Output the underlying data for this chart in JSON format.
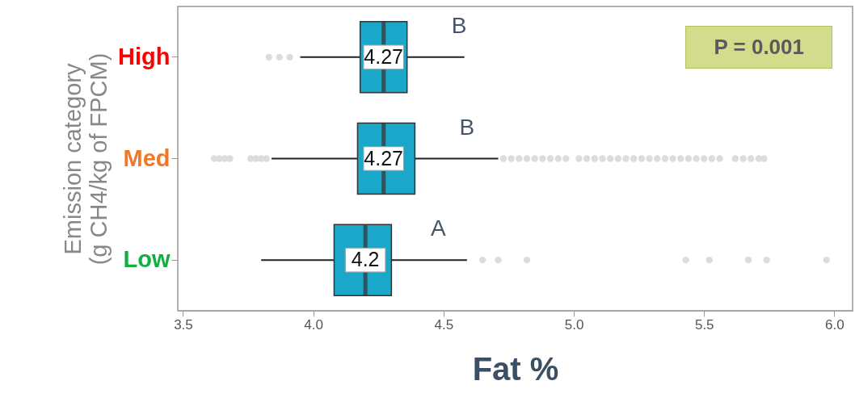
{
  "chart_data": {
    "type": "box",
    "orientation": "horizontal",
    "categories": [
      "High",
      "Med",
      "Low"
    ],
    "xlabel": "Fat %",
    "ylabel": "Emission category\n(g CH4/kg of FPCM)",
    "xlim": [
      3.48,
      6.07
    ],
    "xticks": [
      {
        "value": 3.5,
        "label": "3.5"
      },
      {
        "value": 4,
        "label": "4.0"
      },
      {
        "value": 4.5,
        "label": "4.5"
      },
      {
        "value": 5,
        "label": "5.0"
      },
      {
        "value": 5.5,
        "label": "5.5"
      },
      {
        "value": 6,
        "label": "6.0"
      }
    ],
    "grid": false,
    "color": "#1aa7c9",
    "boxes": [
      {
        "low": 3.95,
        "q1": 4.18,
        "median": 4.27,
        "q3": 4.36,
        "high": 4.58,
        "outliers": [
          3.83,
          3.87,
          3.91
        ]
      },
      {
        "low": 3.84,
        "q1": 4.17,
        "median": 4.27,
        "q3": 4.39,
        "high": 4.71,
        "outliers": [
          3.62,
          3.64,
          3.66,
          3.68,
          3.76,
          3.78,
          3.8,
          3.82,
          4.73,
          4.76,
          4.79,
          4.82,
          4.85,
          4.88,
          4.91,
          4.94,
          4.97,
          5.02,
          5.05,
          5.08,
          5.11,
          5.14,
          5.17,
          5.2,
          5.23,
          5.26,
          5.29,
          5.32,
          5.35,
          5.38,
          5.41,
          5.44,
          5.47,
          5.5,
          5.53,
          5.56,
          5.62,
          5.65,
          5.68,
          5.71,
          5.73
        ]
      },
      {
        "low": 3.8,
        "q1": 4.08,
        "median": 4.2,
        "q3": 4.3,
        "high": 4.59,
        "outliers": [
          4.65,
          4.71,
          4.82,
          5.43,
          5.52,
          5.67,
          5.74,
          5.97
        ]
      }
    ],
    "value_labels": [
      "4.27",
      "4.27",
      "4.2"
    ],
    "annotations": [
      {
        "text": "B",
        "x": 4.56,
        "y": "High"
      },
      {
        "text": "B",
        "x": 4.59,
        "y": "Med"
      },
      {
        "text": "A",
        "x": 4.48,
        "y": "Low"
      },
      "P = 0.001"
    ]
  }
}
